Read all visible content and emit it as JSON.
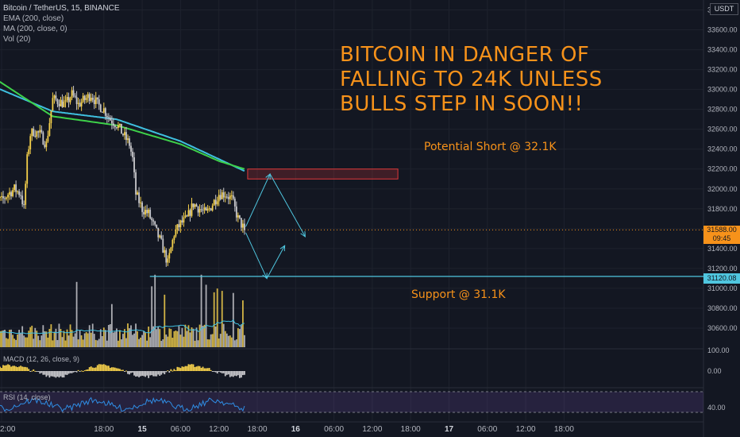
{
  "header": {
    "symbol": "Bitcoin / TetherUS, 15, BINANCE",
    "ema": "EMA (200, close)",
    "ma": "MA (200, close, 0)",
    "vol": "Vol (20)",
    "currency_button": "USDT"
  },
  "annotations": {
    "headline": [
      "BITCOIN IN DANGER OF",
      "FALLING TO 24K UNLESS",
      "BULLS STEP IN SOON!!"
    ],
    "short_label": "Potential Short @ 32.1K",
    "support_label": "Support @ 31.1K"
  },
  "price_tags": {
    "last_price": "31588.00",
    "countdown": "09:45",
    "support_price": "31120.08"
  },
  "macd": {
    "label": "MACD (12, 26, close, 9)",
    "axis_labels": [
      "100.00",
      "0.00"
    ]
  },
  "rsi": {
    "label": "RSI (14, close)",
    "axis_labels": [
      "40.00"
    ]
  },
  "colors": {
    "background": "#131722",
    "up_candle": "#f5d04b",
    "down_candle": "#c8c8cc",
    "ema_line": "#3fc0df",
    "ma_line": "#3ed14a",
    "annotation": "#f7921a",
    "projection": "#4fc6df",
    "short_zone": "#e0393a",
    "rsi_line": "#2f8de4",
    "rsi_band": "#7e57c2"
  },
  "chart_data": {
    "type": "candlestick",
    "price_axis": {
      "range": [
        30400,
        33900
      ],
      "ticks": [
        30600,
        30800,
        31000,
        31200,
        31400,
        31600,
        31800,
        32000,
        32200,
        32400,
        32600,
        32800,
        33000,
        33200,
        33400,
        33600,
        33800
      ],
      "tick_labels": [
        "30600.00",
        "30800.00",
        "31000.00",
        "31200.00",
        "31400.00",
        "31600.00",
        "31800.00",
        "32000.00",
        "32200.00",
        "32400.00",
        "32600.00",
        "32800.00",
        "33000.00",
        "33200.00",
        "33400.00",
        "33600.00",
        "33800.00"
      ]
    },
    "time_axis": {
      "labels": [
        "2:00",
        "18:00",
        "15",
        "06:00",
        "12:00",
        "18:00",
        "16",
        "06:00",
        "12:00",
        "18:00",
        "17",
        "06:00",
        "12:00",
        "18:00"
      ],
      "positions": [
        2,
        18,
        24,
        30,
        36,
        42,
        48,
        54,
        60,
        66,
        72,
        78,
        84,
        90
      ],
      "bold": [
        "15",
        "16",
        "17"
      ]
    },
    "close_anchors": [
      [
        0,
        31850
      ],
      [
        1,
        31900
      ],
      [
        2,
        31880
      ],
      [
        3,
        31950
      ],
      [
        4,
        32000
      ],
      [
        5,
        31950
      ],
      [
        5.5,
        31800
      ],
      [
        6,
        32300
      ],
      [
        6.5,
        32550
      ],
      [
        7,
        32580
      ],
      [
        8,
        32550
      ],
      [
        9,
        32450
      ],
      [
        10,
        32900
      ],
      [
        11,
        32880
      ],
      [
        12,
        32850
      ],
      [
        13,
        32950
      ],
      [
        14,
        32850
      ],
      [
        15,
        32900
      ],
      [
        16,
        32950
      ],
      [
        17,
        32850
      ],
      [
        18,
        32800
      ],
      [
        19,
        32700
      ],
      [
        20,
        32650
      ],
      [
        21,
        32550
      ],
      [
        22,
        32450
      ],
      [
        22.5,
        32300
      ],
      [
        23,
        31950
      ],
      [
        24,
        31800
      ],
      [
        25,
        31750
      ],
      [
        26,
        31600
      ],
      [
        27,
        31450
      ],
      [
        28,
        31250
      ],
      [
        29,
        31550
      ],
      [
        30,
        31650
      ],
      [
        31,
        31700
      ],
      [
        32,
        31850
      ],
      [
        33,
        31800
      ],
      [
        34,
        31750
      ],
      [
        35,
        31850
      ],
      [
        36,
        31950
      ],
      [
        37,
        31950
      ],
      [
        38,
        31900
      ],
      [
        39,
        31700
      ],
      [
        40,
        31588
      ]
    ],
    "ema_200": [
      [
        0,
        33050
      ],
      [
        10,
        32780
      ],
      [
        20,
        32700
      ],
      [
        30,
        32480
      ],
      [
        36,
        32300
      ],
      [
        40,
        32180
      ]
    ],
    "ma_200": [
      [
        0,
        33150
      ],
      [
        10,
        32730
      ],
      [
        20,
        32640
      ],
      [
        30,
        32450
      ],
      [
        36,
        32280
      ],
      [
        40,
        32200
      ]
    ],
    "short_zone": {
      "from": [
        40.5,
        32100
      ],
      "to": [
        64,
        32200
      ]
    },
    "support_level": 31120.08,
    "last_price": 31588,
    "projections": [
      [
        [
          40.2,
          31620
        ],
        [
          44,
          32150
        ],
        [
          49.5,
          31520
        ]
      ],
      [
        [
          40.2,
          31560
        ],
        [
          43.5,
          31100
        ],
        [
          46.3,
          31430
        ]
      ]
    ],
    "macd_axis": [
      "100.00",
      "0.00"
    ],
    "rsi_axis": [
      "40.00"
    ]
  }
}
